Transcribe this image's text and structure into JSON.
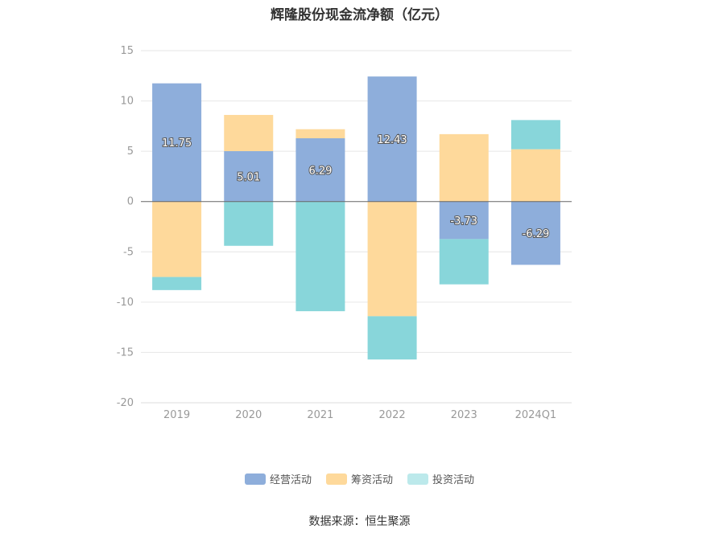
{
  "title": "辉隆股份现金流净额（亿元）",
  "source_text": "数据来源：恒生聚源",
  "colors": {
    "operating": "#8eaedb",
    "financing": "#fed99b",
    "investing": "#88d6da",
    "investing_legend": "#bce9eb",
    "grid": "#e6e6e6",
    "axis": "#666666",
    "tick_text": "#999999",
    "label_text": "#ffffff"
  },
  "chart_data": {
    "type": "bar",
    "stacked": true,
    "title": "辉隆股份现金流净额（亿元）",
    "xlabel": "",
    "ylabel": "",
    "categories": [
      "2019",
      "2020",
      "2021",
      "2022",
      "2023",
      "2024Q1"
    ],
    "ylim": [
      -20,
      15
    ],
    "yticks": [
      15,
      10,
      5,
      0,
      -5,
      -10,
      -15,
      -20
    ],
    "grid": true,
    "legend_position": "bottom",
    "series": [
      {
        "name": "经营活动",
        "key": "operating",
        "values": [
          11.75,
          5.01,
          6.29,
          12.43,
          -3.73,
          -6.29
        ],
        "labels": [
          "11.75",
          "5.01",
          "6.29",
          "12.43",
          "-3.73",
          "-6.29"
        ]
      },
      {
        "name": "筹资活动",
        "key": "financing",
        "values": [
          -7.5,
          3.6,
          0.9,
          -11.4,
          6.7,
          5.2
        ]
      },
      {
        "name": "投资活动",
        "key": "investing",
        "values": [
          -1.3,
          -4.4,
          -10.9,
          -4.3,
          -4.5,
          2.9
        ]
      }
    ]
  }
}
